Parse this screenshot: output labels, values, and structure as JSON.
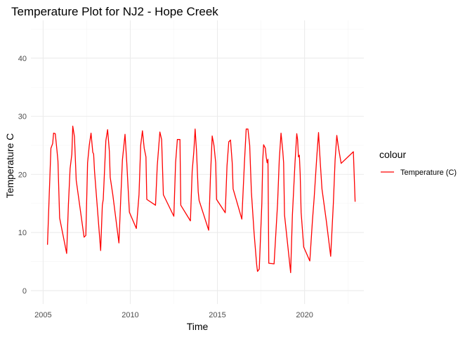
{
  "chart_data": {
    "type": "line",
    "title": "Temperature Plot for NJ2 - Hope Creek",
    "xlabel": "Time",
    "ylabel": "Temperature C",
    "xlim": [
      2004.3,
      2023.4
    ],
    "ylim": [
      -2.3,
      46.5
    ],
    "x_ticks": [
      2005,
      2010,
      2015,
      2020
    ],
    "y_ticks": [
      0,
      10,
      20,
      30,
      40
    ],
    "grid": true,
    "legend": {
      "title": "colour",
      "position": "right"
    },
    "series": [
      {
        "name": "Temperature (C)",
        "color": "#ff0000",
        "points": [
          [
            2005.25,
            7.9
          ],
          [
            2005.35,
            16.5
          ],
          [
            2005.45,
            24.5
          ],
          [
            2005.55,
            25.3
          ],
          [
            2005.6,
            27.1
          ],
          [
            2005.7,
            27.0
          ],
          [
            2005.8,
            24.0
          ],
          [
            2005.85,
            22.3
          ],
          [
            2005.95,
            12.5
          ],
          [
            2006.35,
            6.4
          ],
          [
            2006.45,
            14.8
          ],
          [
            2006.55,
            21.0
          ],
          [
            2006.65,
            23.5
          ],
          [
            2006.7,
            28.3
          ],
          [
            2006.8,
            26.5
          ],
          [
            2006.9,
            19.0
          ],
          [
            2007.35,
            9.2
          ],
          [
            2007.45,
            9.5
          ],
          [
            2007.55,
            22.0
          ],
          [
            2007.65,
            25.0
          ],
          [
            2007.75,
            27.1
          ],
          [
            2007.85,
            23.8
          ],
          [
            2007.9,
            23.5
          ],
          [
            2007.95,
            20.5
          ],
          [
            2008.3,
            6.9
          ],
          [
            2008.4,
            14.7
          ],
          [
            2008.45,
            15.7
          ],
          [
            2008.55,
            22.5
          ],
          [
            2008.6,
            25.8
          ],
          [
            2008.7,
            27.7
          ],
          [
            2008.8,
            24.0
          ],
          [
            2008.85,
            19.5
          ],
          [
            2009.0,
            16.5
          ],
          [
            2009.35,
            8.2
          ],
          [
            2009.45,
            15.5
          ],
          [
            2009.55,
            22.5
          ],
          [
            2009.7,
            26.9
          ],
          [
            2009.8,
            22.0
          ],
          [
            2009.95,
            13.5
          ],
          [
            2010.35,
            10.7
          ],
          [
            2010.5,
            16.5
          ],
          [
            2010.6,
            25.0
          ],
          [
            2010.7,
            27.5
          ],
          [
            2010.8,
            24.5
          ],
          [
            2010.9,
            23.0
          ],
          [
            2010.95,
            15.7
          ],
          [
            2011.45,
            14.7
          ],
          [
            2011.55,
            21.5
          ],
          [
            2011.7,
            27.3
          ],
          [
            2011.8,
            26.0
          ],
          [
            2011.9,
            16.5
          ],
          [
            2012.5,
            12.8
          ],
          [
            2012.6,
            22.0
          ],
          [
            2012.7,
            26.0
          ],
          [
            2012.85,
            26.0
          ],
          [
            2012.9,
            14.7
          ],
          [
            2013.45,
            12.0
          ],
          [
            2013.55,
            20.5
          ],
          [
            2013.65,
            24.0
          ],
          [
            2013.72,
            27.8
          ],
          [
            2013.8,
            24.0
          ],
          [
            2013.9,
            17.0
          ],
          [
            2013.95,
            15.5
          ],
          [
            2014.5,
            10.4
          ],
          [
            2014.6,
            19.5
          ],
          [
            2014.7,
            26.6
          ],
          [
            2014.8,
            25.0
          ],
          [
            2014.9,
            22.0
          ],
          [
            2014.95,
            15.7
          ],
          [
            2015.45,
            13.4
          ],
          [
            2015.55,
            21.5
          ],
          [
            2015.65,
            25.6
          ],
          [
            2015.75,
            25.9
          ],
          [
            2015.85,
            22.0
          ],
          [
            2015.9,
            17.5
          ],
          [
            2016.4,
            12.3
          ],
          [
            2016.55,
            22.0
          ],
          [
            2016.65,
            27.8
          ],
          [
            2016.75,
            27.8
          ],
          [
            2016.85,
            25.0
          ],
          [
            2016.95,
            17.0
          ],
          [
            2017.1,
            10.0
          ],
          [
            2017.25,
            4.5
          ],
          [
            2017.3,
            3.3
          ],
          [
            2017.4,
            3.7
          ],
          [
            2017.55,
            15.0
          ],
          [
            2017.6,
            22.5
          ],
          [
            2017.65,
            25.1
          ],
          [
            2017.75,
            24.5
          ],
          [
            2017.8,
            23.0
          ],
          [
            2017.85,
            22.0
          ],
          [
            2017.9,
            22.6
          ],
          [
            2017.95,
            4.7
          ],
          [
            2018.25,
            4.6
          ],
          [
            2018.45,
            15.0
          ],
          [
            2018.55,
            22.5
          ],
          [
            2018.65,
            27.1
          ],
          [
            2018.75,
            24.0
          ],
          [
            2018.8,
            22.0
          ],
          [
            2018.85,
            13.0
          ],
          [
            2019.2,
            3.1
          ],
          [
            2019.3,
            13.0
          ],
          [
            2019.45,
            22.0
          ],
          [
            2019.55,
            27.0
          ],
          [
            2019.6,
            26.0
          ],
          [
            2019.65,
            23.0
          ],
          [
            2019.7,
            23.3
          ],
          [
            2019.75,
            20.0
          ],
          [
            2019.8,
            13.5
          ],
          [
            2019.95,
            7.5
          ],
          [
            2020.3,
            5.1
          ],
          [
            2020.45,
            12.0
          ],
          [
            2020.55,
            16.0
          ],
          [
            2020.7,
            23.0
          ],
          [
            2020.8,
            27.2
          ],
          [
            2020.9,
            22.0
          ],
          [
            2021.0,
            17.5
          ],
          [
            2021.25,
            12.0
          ],
          [
            2021.5,
            5.9
          ],
          [
            2021.65,
            15.0
          ],
          [
            2021.75,
            22.5
          ],
          [
            2021.85,
            26.7
          ],
          [
            2021.95,
            24.5
          ],
          [
            2022.1,
            21.9
          ],
          [
            2022.8,
            23.9
          ],
          [
            2022.9,
            15.3
          ]
        ]
      }
    ]
  }
}
